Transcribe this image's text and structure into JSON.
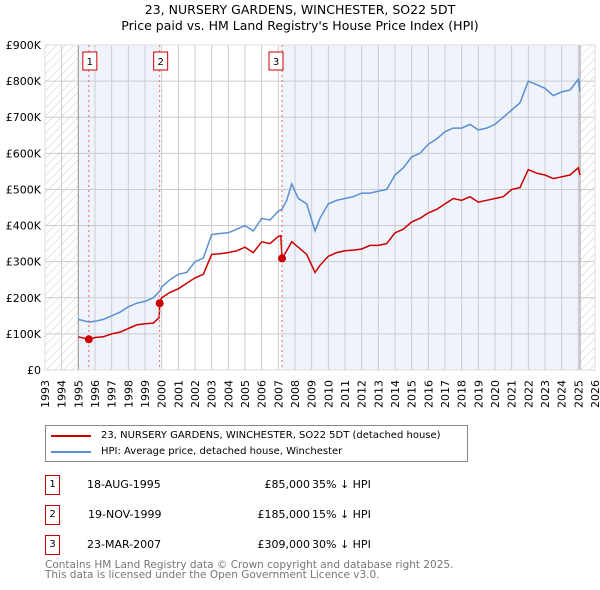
{
  "title_line1": "23, NURSERY GARDENS, WINCHESTER, SO22 5DT",
  "title_line2": "Price paid vs. HM Land Registry's House Price Index (HPI)",
  "chart_data": {
    "type": "line",
    "title": "23, NURSERY GARDENS, WINCHESTER, SO22 5DT - Price paid vs. HM Land Registry's House Price Index (HPI)",
    "xlim": [
      1993,
      2026
    ],
    "ylim": [
      0,
      900000
    ],
    "x_ticks": [
      "1993",
      "1994",
      "1995",
      "1996",
      "1997",
      "1998",
      "1999",
      "2000",
      "2001",
      "2002",
      "2003",
      "2004",
      "2005",
      "2006",
      "2007",
      "2008",
      "2009",
      "2010",
      "2011",
      "2012",
      "2013",
      "2014",
      "2015",
      "2016",
      "2017",
      "2018",
      "2019",
      "2020",
      "2021",
      "2022",
      "2023",
      "2024",
      "2025",
      "2026"
    ],
    "y_ticks": [
      {
        "v": 0,
        "label": "£0"
      },
      {
        "v": 100000,
        "label": "£100K"
      },
      {
        "v": 200000,
        "label": "£200K"
      },
      {
        "v": 300000,
        "label": "£300K"
      },
      {
        "v": 400000,
        "label": "£400K"
      },
      {
        "v": 500000,
        "label": "£500K"
      },
      {
        "v": 600000,
        "label": "£600K"
      },
      {
        "v": 700000,
        "label": "£700K"
      },
      {
        "v": 800000,
        "label": "£800K"
      },
      {
        "v": 900000,
        "label": "£900K"
      }
    ],
    "grid": true,
    "series": [
      {
        "name": "23, NURSERY GARDENS, WINCHESTER, SO22 5DT (detached house)",
        "color": "#cc0000",
        "x": [
          1995.0,
          1995.63,
          1996,
          1996.5,
          1997,
          1997.5,
          1998,
          1998.5,
          1999,
          1999.5,
          1999.85,
          1999.88,
          2000,
          2000.5,
          2001,
          2001.5,
          2002,
          2002.5,
          2003,
          2003.5,
          2004,
          2004.5,
          2005,
          2005.5,
          2006,
          2006.5,
          2007,
          2007.15,
          2007.22,
          2007.5,
          2007.8,
          2008.2,
          2008.7,
          2009.2,
          2009.5,
          2010,
          2010.5,
          2011,
          2011.5,
          2012,
          2012.5,
          2013,
          2013.5,
          2014,
          2014.5,
          2015,
          2015.5,
          2016,
          2016.5,
          2017,
          2017.5,
          2018,
          2018.5,
          2019,
          2019.5,
          2020,
          2020.5,
          2021,
          2021.5,
          2022,
          2022.5,
          2023,
          2023.5,
          2024,
          2024.5,
          2025,
          2025.1
        ],
        "y": [
          92000,
          85000,
          90000,
          92000,
          100000,
          105000,
          115000,
          125000,
          128000,
          130000,
          145000,
          185000,
          200000,
          215000,
          225000,
          240000,
          255000,
          265000,
          320000,
          322000,
          325000,
          330000,
          340000,
          325000,
          355000,
          350000,
          370000,
          372000,
          309000,
          330000,
          355000,
          340000,
          320000,
          270000,
          290000,
          315000,
          325000,
          330000,
          332000,
          335000,
          345000,
          345000,
          350000,
          380000,
          390000,
          410000,
          420000,
          435000,
          445000,
          460000,
          475000,
          470000,
          480000,
          465000,
          470000,
          475000,
          480000,
          500000,
          505000,
          555000,
          545000,
          540000,
          530000,
          535000,
          540000,
          560000,
          540000
        ]
      },
      {
        "name": "HPI: Average price, detached house, Winchester",
        "color": "#5b8fd0",
        "x": [
          1995.0,
          1995.63,
          1996,
          1996.5,
          1997,
          1997.5,
          1998,
          1998.5,
          1999,
          1999.5,
          1999.88,
          2000,
          2000.5,
          2001,
          2001.5,
          2002,
          2002.5,
          2003,
          2003.5,
          2004,
          2004.5,
          2005,
          2005.5,
          2006,
          2006.5,
          2007,
          2007.22,
          2007.5,
          2007.8,
          2008.2,
          2008.7,
          2009.2,
          2009.5,
          2010,
          2010.5,
          2011,
          2011.5,
          2012,
          2012.5,
          2013,
          2013.5,
          2014,
          2014.5,
          2015,
          2015.5,
          2016,
          2016.5,
          2017,
          2017.5,
          2018,
          2018.5,
          2019,
          2019.5,
          2020,
          2020.5,
          2021,
          2021.5,
          2022,
          2022.5,
          2023,
          2023.5,
          2024,
          2024.5,
          2025,
          2025.1
        ],
        "y": [
          140000,
          133000,
          135000,
          140000,
          150000,
          160000,
          175000,
          185000,
          190000,
          200000,
          218000,
          230000,
          250000,
          265000,
          270000,
          300000,
          310000,
          375000,
          378000,
          380000,
          390000,
          400000,
          385000,
          420000,
          415000,
          440000,
          445000,
          470000,
          515000,
          475000,
          460000,
          385000,
          420000,
          460000,
          470000,
          475000,
          480000,
          490000,
          490000,
          495000,
          500000,
          540000,
          560000,
          590000,
          600000,
          625000,
          640000,
          660000,
          670000,
          670000,
          680000,
          665000,
          670000,
          680000,
          700000,
          720000,
          740000,
          800000,
          790000,
          780000,
          760000,
          770000,
          775000,
          805000,
          770000
        ]
      }
    ],
    "sales": [
      {
        "id": "1",
        "x": 1995.63,
        "price": 85000
      },
      {
        "id": "2",
        "x": 1999.88,
        "price": 185000
      },
      {
        "id": "3",
        "x": 2007.22,
        "price": 309000
      }
    ],
    "legend_position": "below"
  },
  "legend": {
    "red_label": "23, NURSERY GARDENS, WINCHESTER, SO22 5DT (detached house)",
    "blue_label": "HPI: Average price, detached house, Winchester"
  },
  "sales_table": [
    {
      "id": "1",
      "date": "18-AUG-1995",
      "price": "£85,000",
      "hpi": "35% ↓ HPI"
    },
    {
      "id": "2",
      "date": "19-NOV-1999",
      "price": "£185,000",
      "hpi": "15% ↓ HPI"
    },
    {
      "id": "3",
      "date": "23-MAR-2007",
      "price": "£309,000",
      "hpi": "30% ↓ HPI"
    }
  ],
  "footer_line1": "Contains HM Land Registry data © Crown copyright and database right 2025.",
  "footer_line2": "This data is licensed under the Open Government Licence v3.0."
}
